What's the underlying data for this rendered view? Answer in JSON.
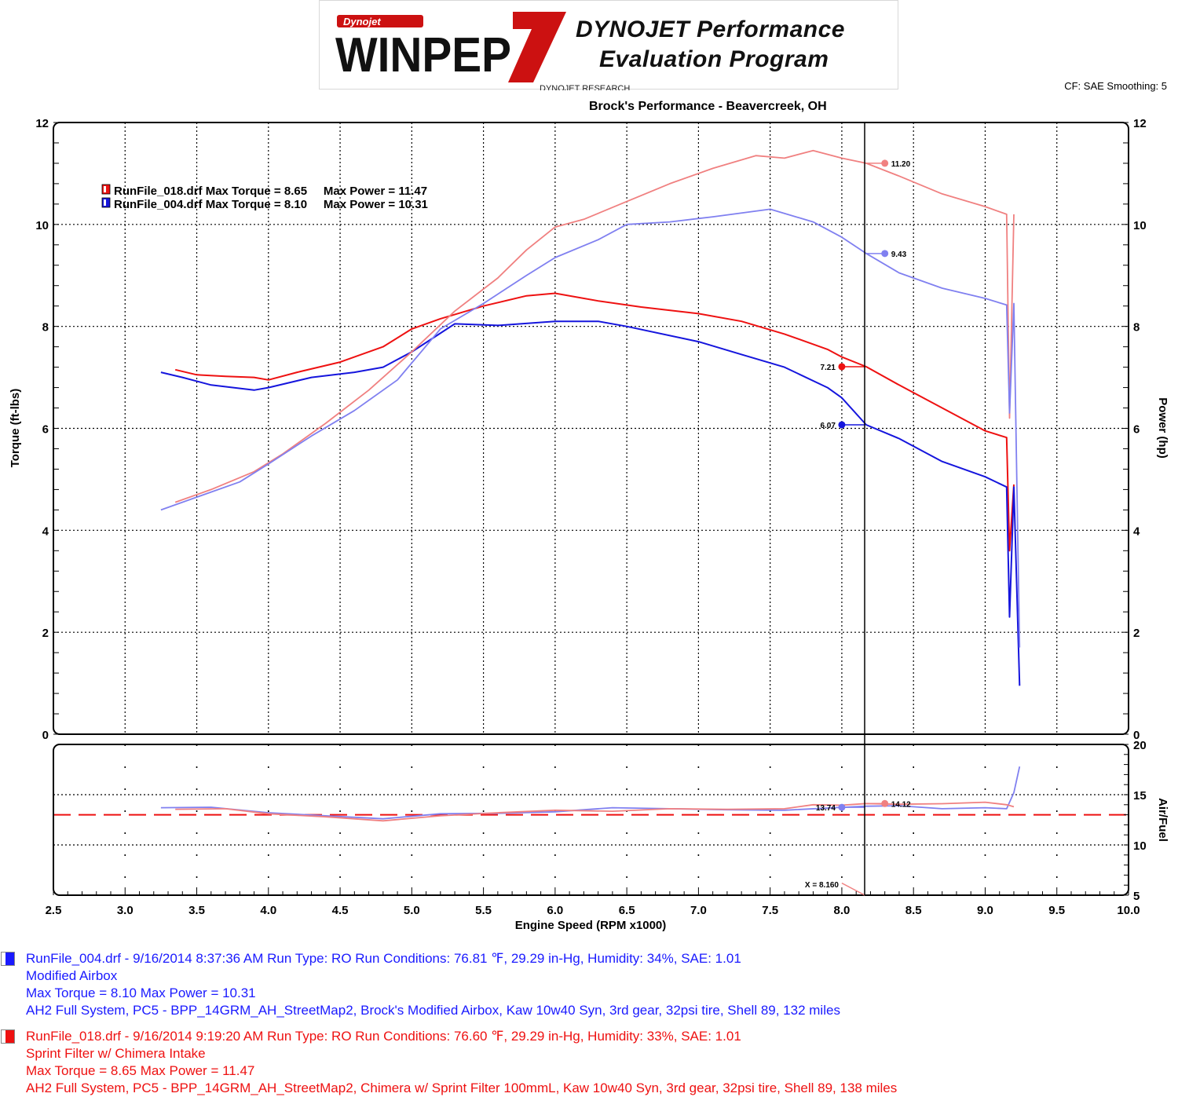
{
  "header": {
    "logo_word": "WINPEP",
    "logo_digit": "7",
    "logo_brand": "Dynojet",
    "logo_line1": "DYNOJET Performance",
    "logo_line2": "Evaluation Program",
    "logo_sub": "DYNOJET RESEARCH",
    "cf_info": "CF: SAE  Smoothing: 5",
    "shop_title": "Brock's Performance - Beavercreek, OH"
  },
  "colors": {
    "red": "#ee1111",
    "blue": "#1515dd",
    "red_light": "#f08080",
    "blue_light": "#8080f0"
  },
  "legend": [
    {
      "file": "RunFile_018.drf",
      "text": "RunFile_018.drf Max Torque = 8.65     Max Power = 11.47"
    },
    {
      "file": "RunFile_004.drf",
      "text": "RunFile_004.drf Max Torque = 8.10     Max Power = 10.31"
    }
  ],
  "chart_data": [
    {
      "type": "line",
      "title": "Brock's Performance - Beavercreek, OH",
      "xlabel": "Engine Speed (RPM x1000)",
      "ylabel": "Torque (ft-lbs)",
      "y2label": "Power (hp)",
      "xlim": [
        2.5,
        10.0
      ],
      "ylim": [
        0,
        12
      ],
      "y2lim": [
        0,
        12
      ],
      "xticks": [
        "2.5",
        "3.0",
        "3.5",
        "4.0",
        "4.5",
        "5.0",
        "5.5",
        "6.0",
        "6.5",
        "7.0",
        "7.5",
        "8.0",
        "8.5",
        "9.0",
        "9.5",
        "10.0"
      ],
      "yticks": [
        "0",
        "2",
        "4",
        "6",
        "8",
        "10",
        "12"
      ],
      "grid": true,
      "legend_position": "top-left",
      "cursor_x": 8.16,
      "series": [
        {
          "name": "RunFile_018.drf",
          "measure": "Torque",
          "color": "#ee1111",
          "x": [
            3.35,
            3.5,
            3.7,
            3.9,
            4.0,
            4.2,
            4.5,
            4.8,
            5.0,
            5.2,
            5.5,
            5.8,
            6.0,
            6.3,
            6.6,
            7.0,
            7.3,
            7.6,
            7.9,
            8.0,
            8.17,
            8.4,
            8.7,
            9.0,
            9.15,
            9.17,
            9.2
          ],
          "y": [
            7.15,
            7.05,
            7.02,
            7.0,
            6.95,
            7.1,
            7.3,
            7.6,
            7.95,
            8.15,
            8.4,
            8.6,
            8.65,
            8.5,
            8.38,
            8.25,
            8.1,
            7.85,
            7.55,
            7.4,
            7.21,
            6.85,
            6.4,
            5.95,
            5.82,
            3.6,
            4.9
          ]
        },
        {
          "name": "RunFile_004.drf",
          "measure": "Torque",
          "color": "#1515dd",
          "x": [
            3.25,
            3.4,
            3.6,
            3.9,
            4.0,
            4.3,
            4.6,
            4.8,
            5.0,
            5.3,
            5.6,
            6.0,
            6.3,
            6.5,
            7.0,
            7.3,
            7.6,
            7.9,
            8.0,
            8.17,
            8.4,
            8.7,
            9.0,
            9.15,
            9.17,
            9.2,
            9.24
          ],
          "y": [
            7.1,
            7.0,
            6.85,
            6.75,
            6.8,
            7.0,
            7.1,
            7.2,
            7.5,
            8.05,
            8.02,
            8.1,
            8.1,
            8.0,
            7.7,
            7.45,
            7.2,
            6.8,
            6.6,
            6.07,
            5.8,
            5.35,
            5.05,
            4.85,
            2.3,
            4.85,
            0.95
          ]
        },
        {
          "name": "RunFile_018.drf",
          "measure": "Power",
          "color": "#f08080",
          "x": [
            3.35,
            3.6,
            3.9,
            4.1,
            4.4,
            4.7,
            5.0,
            5.3,
            5.6,
            5.8,
            6.0,
            6.2,
            6.5,
            6.8,
            7.1,
            7.4,
            7.6,
            7.8,
            8.0,
            8.17,
            8.4,
            8.7,
            9.0,
            9.15,
            9.17,
            9.2
          ],
          "y": [
            4.55,
            4.8,
            5.15,
            5.5,
            6.1,
            6.75,
            7.5,
            8.3,
            8.95,
            9.5,
            9.95,
            10.1,
            10.45,
            10.8,
            11.1,
            11.35,
            11.3,
            11.45,
            11.3,
            11.2,
            10.95,
            10.6,
            10.35,
            10.2,
            6.2,
            10.2
          ]
        },
        {
          "name": "RunFile_004.drf",
          "measure": "Power",
          "color": "#8080f0",
          "x": [
            3.25,
            3.5,
            3.8,
            4.0,
            4.3,
            4.6,
            4.9,
            5.2,
            5.5,
            5.8,
            6.0,
            6.3,
            6.5,
            6.8,
            7.1,
            7.5,
            7.8,
            8.0,
            8.17,
            8.4,
            8.7,
            9.0,
            9.15,
            9.17,
            9.2,
            9.24
          ],
          "y": [
            4.4,
            4.65,
            4.95,
            5.3,
            5.85,
            6.35,
            6.95,
            7.95,
            8.45,
            9.0,
            9.35,
            9.7,
            10.0,
            10.05,
            10.15,
            10.3,
            10.05,
            9.75,
            9.43,
            9.05,
            8.75,
            8.55,
            8.42,
            6.3,
            8.45,
            1.7
          ]
        }
      ],
      "markers": [
        {
          "series": "RunFile_018.drf Power",
          "x": 8.3,
          "y": 11.2,
          "label": "11.20",
          "color": "#f08080"
        },
        {
          "series": "RunFile_004.drf Power",
          "x": 8.3,
          "y": 9.43,
          "label": "9.43",
          "color": "#8080f0"
        },
        {
          "series": "RunFile_018.drf Torque",
          "x": 8.0,
          "y": 7.21,
          "label": "7.21",
          "color": "#ee1111"
        },
        {
          "series": "RunFile_004.drf Torque",
          "x": 8.0,
          "y": 6.07,
          "label": "6.07",
          "color": "#1515dd"
        }
      ]
    },
    {
      "type": "line",
      "xlabel": "Engine Speed (RPM x1000)",
      "y2label": "Air/Fuel",
      "xlim": [
        2.5,
        10.0
      ],
      "y2lim": [
        5,
        20
      ],
      "y2ticks": [
        "5",
        "10",
        "15",
        "20"
      ],
      "reference_line": 13.0,
      "cursor_label": "X = 8.160",
      "series": [
        {
          "name": "RunFile_004.drf",
          "measure": "Air/Fuel",
          "color": "#8080f0",
          "x": [
            3.25,
            3.6,
            4.0,
            4.4,
            4.8,
            5.2,
            5.6,
            6.0,
            6.4,
            6.8,
            7.2,
            7.6,
            8.0,
            8.17,
            8.4,
            8.7,
            9.0,
            9.15,
            9.2,
            9.24
          ],
          "y": [
            13.7,
            13.75,
            13.2,
            12.9,
            12.6,
            13.1,
            13.15,
            13.3,
            13.7,
            13.6,
            13.5,
            13.45,
            13.74,
            13.85,
            13.9,
            13.6,
            13.7,
            13.6,
            15.2,
            17.8
          ]
        },
        {
          "name": "RunFile_018.drf",
          "measure": "Air/Fuel",
          "color": "#f08080",
          "x": [
            3.35,
            3.7,
            4.0,
            4.4,
            4.8,
            5.2,
            5.6,
            6.0,
            6.4,
            6.8,
            7.2,
            7.6,
            7.8,
            8.0,
            8.17,
            8.4,
            8.7,
            9.0,
            9.15,
            9.2
          ],
          "y": [
            13.55,
            13.6,
            13.1,
            12.8,
            12.4,
            12.9,
            13.2,
            13.45,
            13.35,
            13.6,
            13.55,
            13.6,
            14.0,
            13.95,
            14.12,
            14.05,
            14.1,
            14.25,
            14.0,
            13.8
          ]
        }
      ],
      "markers": [
        {
          "series": "RunFile_004.drf Air/Fuel",
          "x": 8.0,
          "y": 13.74,
          "label": "13.74",
          "color": "#8080f0"
        },
        {
          "series": "RunFile_018.drf Air/Fuel",
          "x": 8.3,
          "y": 14.12,
          "label": "14.12",
          "color": "#f08080"
        }
      ]
    }
  ],
  "runs": [
    {
      "id": "004",
      "color": "#1a1aff",
      "line1": "RunFile_004.drf - 9/16/2014 8:37:36 AM  Run Type: RO  Run Conditions: 76.81 ℉, 29.29 in-Hg,  Humidity:  34%, SAE: 1.01",
      "line2": "Modified Airbox",
      "line3": "Max Torque = 8.10  Max Power = 10.31",
      "line4": "AH2 Full System, PC5 - BPP_14GRM_AH_StreetMap2, Brock's Modified Airbox, Kaw 10w40 Syn, 3rd gear, 32psi tire, Shell 89, 132 miles"
    },
    {
      "id": "018",
      "color": "#ee1111",
      "line1": "RunFile_018.drf - 9/16/2014 9:19:20 AM  Run Type: RO  Run Conditions: 76.60 ℉, 29.29 in-Hg,  Humidity:  33%, SAE: 1.01",
      "line2": "Sprint Filter w/ Chimera Intake",
      "line3": "Max Torque = 8.65  Max Power = 11.47",
      "line4": "AH2 Full System, PC5 - BPP_14GRM_AH_StreetMap2, Chimera w/ Sprint Filter 100mmL, Kaw 10w40 Syn, 3rd gear, 32psi tire, Shell 89, 138 miles"
    }
  ]
}
